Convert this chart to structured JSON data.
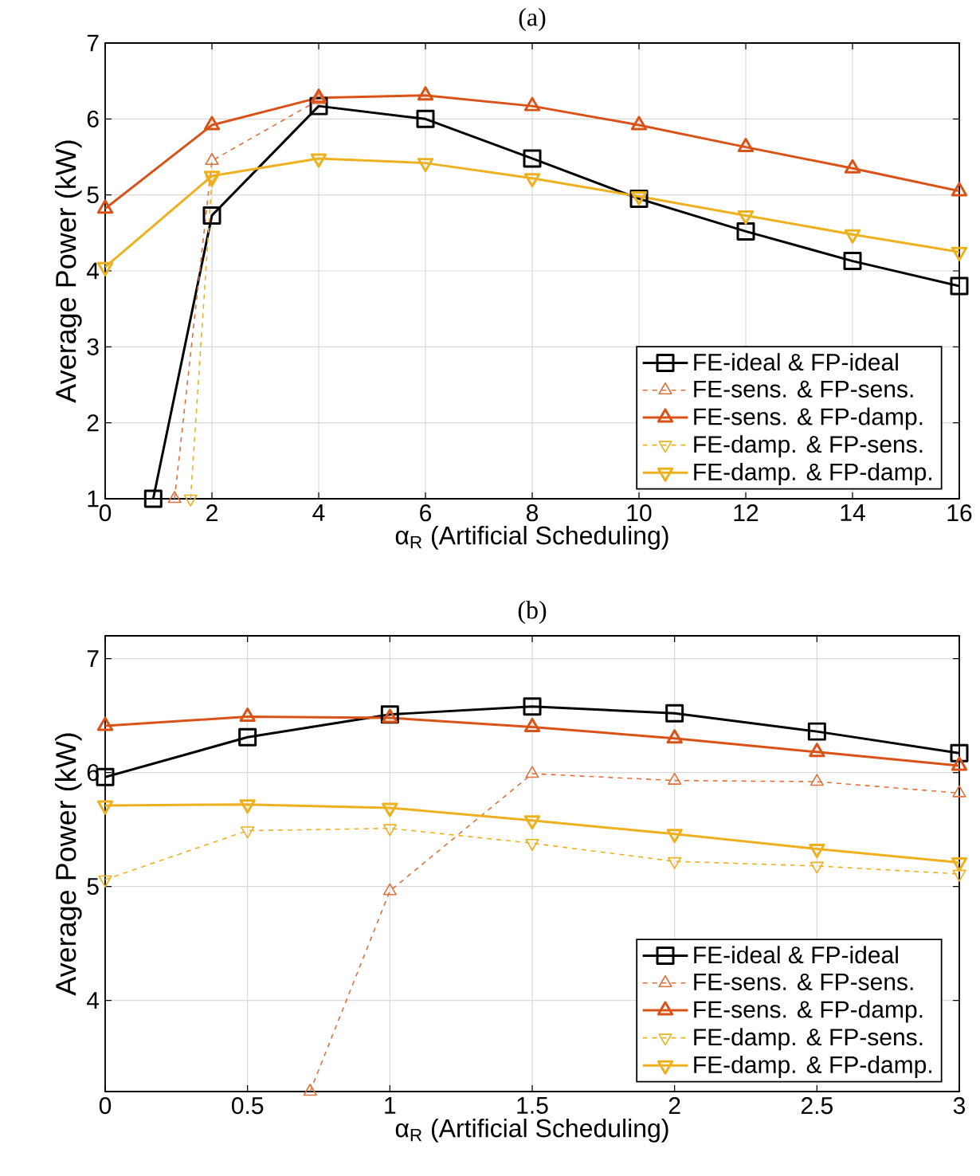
{
  "chart_data": [
    {
      "type": "line",
      "title": "(a)",
      "xlabel": "α$_{R}$ (Artificial Scheduling)",
      "ylabel": "Average Power (kW)",
      "x": [
        0,
        2,
        4,
        6,
        8,
        10,
        12,
        14,
        16
      ],
      "xlim": [
        0,
        16
      ],
      "xticks": [
        0,
        2,
        4,
        6,
        8,
        10,
        12,
        14,
        16
      ],
      "ylim": [
        1,
        7
      ],
      "yticks": [
        1,
        2,
        3,
        4,
        5,
        6,
        7
      ],
      "grid": true,
      "legend": "bottom right",
      "series": [
        {
          "name": "FE-ideal & FP-ideal",
          "color": "#000000",
          "marker": "square",
          "line_style": "solid",
          "x": [
            0.9,
            2,
            4,
            6,
            8,
            10,
            12,
            14,
            16
          ],
          "values": [
            1,
            4.73,
            6.17,
            6.0,
            5.48,
            4.95,
            4.52,
            4.13,
            3.8
          ]
        },
        {
          "name": "FE-sens. & FP-sens.",
          "color": "#e0703c",
          "marker": "triangle",
          "line_style": "dashed",
          "x": [
            1.3,
            2,
            4
          ],
          "values": [
            1,
            5.45,
            6.25
          ]
        },
        {
          "name": "FE-sens. & FP-damp.",
          "color": "#d95319",
          "marker": "triangle",
          "line_style": "solid",
          "values": [
            4.82,
            5.92,
            6.28,
            6.31,
            6.17,
            5.92,
            5.63,
            5.35,
            5.05
          ]
        },
        {
          "name": "FE-damp. & FP-sens.",
          "color": "#edb120",
          "marker": "triangle_down",
          "line_style": "dashed",
          "x": [
            1.6,
            2
          ],
          "values": [
            1,
            5.2
          ]
        },
        {
          "name": "FE-damp. & FP-damp.",
          "color": "#edb120",
          "marker": "triangle_down",
          "line_style": "solid",
          "values": [
            4.05,
            5.25,
            5.48,
            5.42,
            5.22,
            4.98,
            4.73,
            4.48,
            4.25
          ]
        }
      ]
    },
    {
      "type": "line",
      "title": "(b)",
      "xlabel": "α$_{R}$ (Artificial Scheduling)",
      "ylabel": "Average Power (kW)",
      "x": [
        0,
        0.5,
        1,
        1.5,
        2,
        2.5,
        3
      ],
      "xlim": [
        0,
        3
      ],
      "xticks": [
        0,
        0.5,
        1,
        1.5,
        2,
        2.5,
        3
      ],
      "ylim": [
        3.2,
        7.2
      ],
      "yticks": [
        4,
        5,
        6,
        7
      ],
      "grid": true,
      "legend": "bottom right",
      "series": [
        {
          "name": "FE-ideal & FP-ideal",
          "color": "#000000",
          "marker": "square",
          "line_style": "solid",
          "values": [
            5.96,
            6.31,
            6.51,
            6.58,
            6.52,
            6.36,
            6.17
          ]
        },
        {
          "name": "FE-sens. & FP-sens.",
          "color": "#e0703c",
          "marker": "triangle",
          "line_style": "dashed",
          "x": [
            0.72,
            1,
            1.5,
            2,
            2.5,
            3
          ],
          "values": [
            3.2,
            4.96,
            5.99,
            5.93,
            5.92,
            5.82
          ]
        },
        {
          "name": "FE-sens. & FP-damp.",
          "color": "#d95319",
          "marker": "triangle",
          "line_style": "solid",
          "values": [
            6.41,
            6.49,
            6.48,
            6.4,
            6.3,
            6.18,
            6.06
          ]
        },
        {
          "name": "FE-damp. & FP-sens.",
          "color": "#edb120",
          "marker": "triangle_down",
          "line_style": "dashed",
          "values": [
            5.06,
            5.49,
            5.51,
            5.38,
            5.22,
            5.18,
            5.11
          ]
        },
        {
          "name": "FE-damp. & FP-damp.",
          "color": "#edb120",
          "marker": "triangle_down",
          "line_style": "solid",
          "values": [
            5.71,
            5.72,
            5.69,
            5.58,
            5.46,
            5.33,
            5.21
          ]
        }
      ]
    }
  ]
}
